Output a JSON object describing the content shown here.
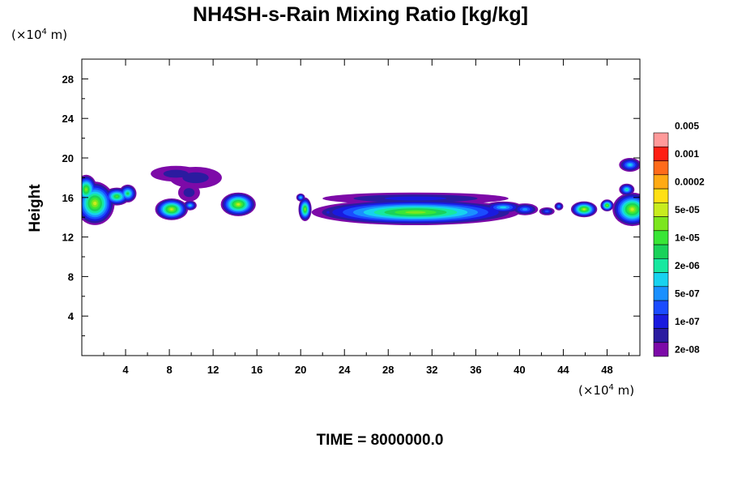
{
  "chart_data": {
    "type": "contour",
    "title": "NH4SH-s-Rain Mixing Ratio [kg/kg]",
    "ylabel": "Height",
    "x_unit": {
      "prefix": "(×10",
      "exponent": "4",
      "suffix": " m)"
    },
    "y_unit": {
      "prefix": "(×10",
      "exponent": "4",
      "suffix": " m)"
    },
    "xlim": [
      0,
      51
    ],
    "ylim": [
      0,
      30
    ],
    "xticks": [
      4,
      8,
      12,
      16,
      20,
      24,
      28,
      32,
      36,
      40,
      44,
      48
    ],
    "yticks": [
      4,
      8,
      12,
      16,
      20,
      24,
      28
    ],
    "time_label": "TIME = 8000000.0",
    "colorbar": {
      "levels": [
        "2e-08",
        "1e-07",
        "5e-07",
        "2e-06",
        "1e-05",
        "5e-05",
        "0.0002",
        "0.001",
        "0.005"
      ],
      "colors": [
        "#7d0aa8",
        "#2b1ba0",
        "#1a1adf",
        "#1b4cff",
        "#1a90ff",
        "#17d2ef",
        "#17e8a0",
        "#1ad25a",
        "#39e636",
        "#7ce61e",
        "#c8ec1e",
        "#ffe014",
        "#ffaa14",
        "#ff6b1a",
        "#ff1f14",
        "#ff9a9a"
      ]
    },
    "clouds": [
      {
        "x": 1.2,
        "y": 15.4,
        "rx": 1.8,
        "ry": 2.2,
        "peak": 10
      },
      {
        "x": 0.4,
        "y": 16.8,
        "rx": 1.0,
        "ry": 1.5,
        "peak": 9
      },
      {
        "x": 3.2,
        "y": 16.1,
        "rx": 1.2,
        "ry": 0.9,
        "peak": 8
      },
      {
        "x": 4.2,
        "y": 16.4,
        "rx": 0.8,
        "ry": 0.9,
        "peak": 7
      },
      {
        "x": 8.2,
        "y": 14.8,
        "rx": 1.5,
        "ry": 1.1,
        "peak": 10
      },
      {
        "x": 9.9,
        "y": 15.2,
        "rx": 0.6,
        "ry": 0.5,
        "peak": 5
      },
      {
        "x": 10.4,
        "y": 18.0,
        "rx": 2.4,
        "ry": 1.1,
        "peak": 1
      },
      {
        "x": 8.6,
        "y": 18.4,
        "rx": 2.3,
        "ry": 0.8,
        "peak": 1
      },
      {
        "x": 9.8,
        "y": 16.5,
        "rx": 1.0,
        "ry": 0.9,
        "peak": 1
      },
      {
        "x": 14.3,
        "y": 15.3,
        "rx": 1.6,
        "ry": 1.2,
        "peak": 10
      },
      {
        "x": 20.4,
        "y": 14.8,
        "rx": 0.6,
        "ry": 1.2,
        "peak": 9
      },
      {
        "x": 20.0,
        "y": 16.0,
        "rx": 0.4,
        "ry": 0.4,
        "peak": 5
      },
      {
        "x": 22.5,
        "y": 14.5,
        "rx": 0.4,
        "ry": 0.4,
        "peak": 2
      },
      {
        "x": 30.5,
        "y": 14.5,
        "rx": 9.5,
        "ry": 1.3,
        "peak": 9
      },
      {
        "x": 30.5,
        "y": 15.9,
        "rx": 8.5,
        "ry": 0.6,
        "peak": 2
      },
      {
        "x": 38.5,
        "y": 15.0,
        "rx": 1.8,
        "ry": 0.6,
        "peak": 5
      },
      {
        "x": 40.5,
        "y": 14.8,
        "rx": 1.2,
        "ry": 0.6,
        "peak": 4
      },
      {
        "x": 42.5,
        "y": 14.6,
        "rx": 0.7,
        "ry": 0.4,
        "peak": 3
      },
      {
        "x": 43.6,
        "y": 15.1,
        "rx": 0.4,
        "ry": 0.4,
        "peak": 4
      },
      {
        "x": 45.9,
        "y": 14.8,
        "rx": 1.2,
        "ry": 0.8,
        "peak": 10
      },
      {
        "x": 48.0,
        "y": 15.2,
        "rx": 0.6,
        "ry": 0.6,
        "peak": 9
      },
      {
        "x": 50.3,
        "y": 14.8,
        "rx": 1.8,
        "ry": 1.7,
        "peak": 10
      },
      {
        "x": 49.8,
        "y": 16.8,
        "rx": 0.7,
        "ry": 0.6,
        "peak": 6
      },
      {
        "x": 50.1,
        "y": 19.3,
        "rx": 1.0,
        "ry": 0.7,
        "peak": 5
      }
    ]
  }
}
